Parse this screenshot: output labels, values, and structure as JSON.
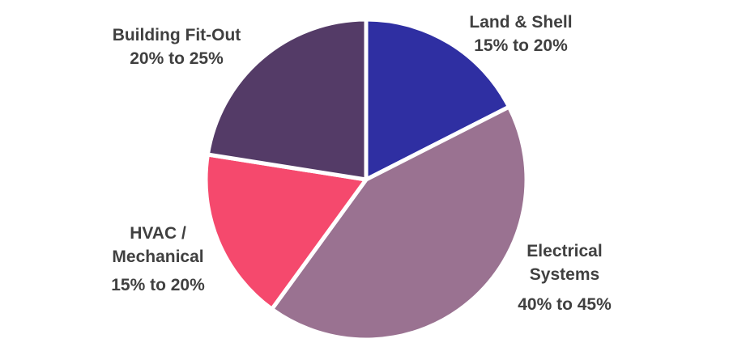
{
  "chart_data": {
    "type": "pie",
    "title": "",
    "direction": "clockwise",
    "start_angle_deg": 0,
    "legend": "none",
    "label_style": "outside-callout-free-text",
    "stroke_color": "#ffffff",
    "stroke_width": 5,
    "text_color": "#404040",
    "background_color": "#ffffff",
    "slices": [
      {
        "label": "Land & Shell",
        "range": "15% to 20%",
        "value": 17.5,
        "color": "#2f2fa2"
      },
      {
        "label": "Electrical Systems",
        "range": "40% to 45%",
        "value": 42.5,
        "color": "#9a7291"
      },
      {
        "label": "HVAC / Mechanical",
        "range": "15% to 20%",
        "value": 17.5,
        "color": "#f5496d"
      },
      {
        "label": "Building Fit-Out",
        "range": "20% to 25%",
        "value": 22.5,
        "color": "#543b67"
      }
    ]
  }
}
